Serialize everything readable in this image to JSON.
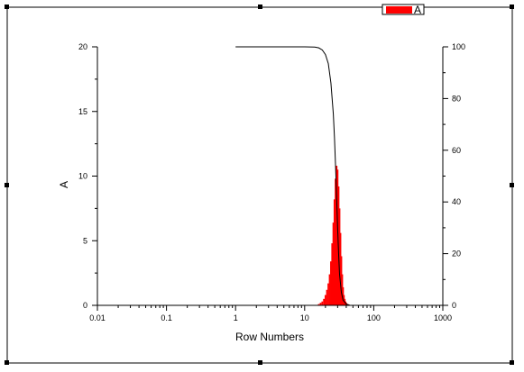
{
  "chart_data": {
    "type": "bar",
    "title": "",
    "xlabel": "Row Numbers",
    "ylabel": "A",
    "y2label": "",
    "x_scale": "log",
    "xlim": [
      0.01,
      1000
    ],
    "ylim": [
      0,
      20
    ],
    "y2lim": [
      0,
      100
    ],
    "x_ticks": [
      "0.01",
      "0.1",
      "1",
      "10",
      "100",
      "1000"
    ],
    "y_ticks": [
      "0",
      "5",
      "10",
      "15",
      "20"
    ],
    "y2_ticks": [
      "0",
      "20",
      "40",
      "60",
      "80",
      "100"
    ],
    "grid": false,
    "legend_position": "top-right",
    "series": [
      {
        "name": "A",
        "kind": "bar",
        "axis": "left",
        "color": "#ff0000",
        "x": [
          16,
          17,
          18,
          19,
          20,
          21,
          22,
          23,
          24,
          25,
          26,
          27,
          28,
          29,
          30,
          31,
          32,
          33,
          34,
          35,
          36,
          37,
          38,
          39,
          40,
          42,
          44
        ],
        "values": [
          0.1,
          0.2,
          0.3,
          0.5,
          0.8,
          1.2,
          1.7,
          2.4,
          3.4,
          4.8,
          6.4,
          8.2,
          9.8,
          10.8,
          10.5,
          9.2,
          7.5,
          5.6,
          3.8,
          2.4,
          1.4,
          0.8,
          0.5,
          0.3,
          0.2,
          0.1,
          0.05
        ]
      },
      {
        "kind": "line",
        "axis": "right",
        "color": "#000000",
        "x": [
          1,
          2,
          5,
          10,
          14,
          16,
          18,
          20,
          22,
          24,
          26,
          27,
          28,
          29,
          30,
          31,
          32,
          34,
          36,
          40,
          45
        ],
        "values": [
          100,
          100,
          100,
          100,
          99.9,
          99.6,
          98.8,
          97,
          93.5,
          86,
          74,
          65,
          54,
          42,
          30,
          20,
          12,
          5,
          2,
          0.5,
          0
        ]
      }
    ]
  }
}
